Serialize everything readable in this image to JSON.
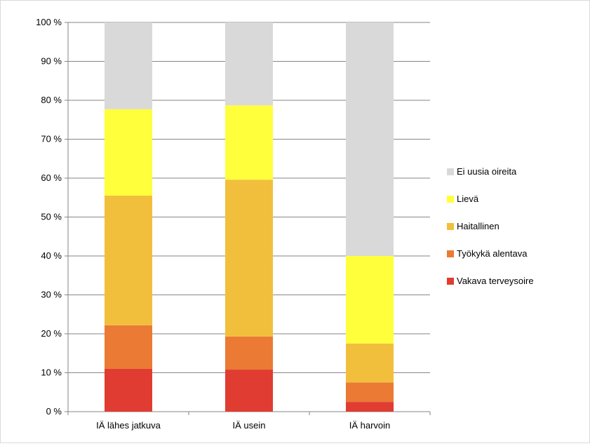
{
  "chart_data": {
    "type": "bar",
    "stacked": "percent",
    "categories": [
      "IÄ lähes jatkuva",
      "IÄ usein",
      "IÄ harvoin"
    ],
    "series": [
      {
        "name": "Vakava terveysoire",
        "color": "#e03c31",
        "values": [
          11.0,
          10.8,
          2.5
        ]
      },
      {
        "name": "Työkykä alentava",
        "color": "#ea7a34",
        "values": [
          11.2,
          8.5,
          5.0
        ]
      },
      {
        "name": "Haitallinen",
        "color": "#f2bf3c",
        "values": [
          33.3,
          40.3,
          10.0
        ]
      },
      {
        "name": "Lievä",
        "color": "#ffff3c",
        "values": [
          22.2,
          19.1,
          22.5
        ]
      },
      {
        "name": "Ei uusia oireita",
        "color": "#d9d9d9",
        "values": [
          22.3,
          21.3,
          60.0
        ]
      }
    ],
    "yticks": [
      "0 %",
      "10 %",
      "20 %",
      "30 %",
      "40 %",
      "50 %",
      "60 %",
      "70 %",
      "80 %",
      "90 %",
      "100 %"
    ],
    "ylim": [
      0,
      100
    ],
    "grid": true,
    "legend": "right",
    "legend_order": [
      "Ei uusia oireita",
      "Lievä",
      "Haitallinen",
      "Työkykä alentava",
      "Vakava terveysoire"
    ]
  }
}
